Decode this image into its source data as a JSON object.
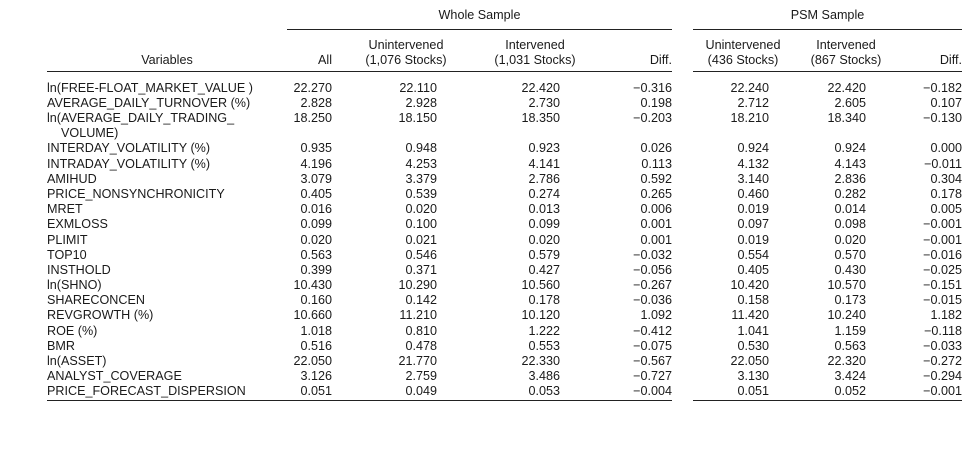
{
  "groups": {
    "whole": "Whole Sample",
    "psm": "PSM Sample"
  },
  "headers": {
    "variables": "Variables",
    "all": "All",
    "unint_whole": [
      "Unintervened",
      "(1,076 Stocks)"
    ],
    "int_whole": [
      "Intervened",
      "(1,031 Stocks)"
    ],
    "diff_whole": "Diff.",
    "unint_psm": [
      "Unintervened",
      "(436 Stocks)"
    ],
    "int_psm": [
      "Intervened",
      "(867 Stocks)"
    ],
    "diff_psm": "Diff."
  },
  "rows": [
    {
      "var": [
        "ln(FREE-FLOAT_MARKET_VALUE )"
      ],
      "v": [
        "22.270",
        "22.110",
        "22.420",
        "−0.316",
        "22.240",
        "22.420",
        "−0.182"
      ]
    },
    {
      "var": [
        "AVERAGE_DAILY_TURNOVER (%)"
      ],
      "v": [
        "2.828",
        "2.928",
        "2.730",
        "0.198",
        "2.712",
        "2.605",
        "0.107"
      ]
    },
    {
      "var": [
        "ln(AVERAGE_DAILY_TRADING_",
        "VOLUME)"
      ],
      "v": [
        "18.250",
        "18.150",
        "18.350",
        "−0.203",
        "18.210",
        "18.340",
        "−0.130"
      ]
    },
    {
      "var": [
        "INTERDAY_VOLATILITY (%)"
      ],
      "v": [
        "0.935",
        "0.948",
        "0.923",
        "0.026",
        "0.924",
        "0.924",
        "0.000"
      ]
    },
    {
      "var": [
        "INTRADAY_VOLATILITY (%)"
      ],
      "v": [
        "4.196",
        "4.253",
        "4.141",
        "0.113",
        "4.132",
        "4.143",
        "−0.011"
      ]
    },
    {
      "var": [
        "AMIHUD"
      ],
      "v": [
        "3.079",
        "3.379",
        "2.786",
        "0.592",
        "3.140",
        "2.836",
        "0.304"
      ]
    },
    {
      "var": [
        "PRICE_NONSYNCHRONICITY"
      ],
      "v": [
        "0.405",
        "0.539",
        "0.274",
        "0.265",
        "0.460",
        "0.282",
        "0.178"
      ]
    },
    {
      "var": [
        "MRET"
      ],
      "v": [
        "0.016",
        "0.020",
        "0.013",
        "0.006",
        "0.019",
        "0.014",
        "0.005"
      ]
    },
    {
      "var": [
        "EXMLOSS"
      ],
      "v": [
        "0.099",
        "0.100",
        "0.099",
        "0.001",
        "0.097",
        "0.098",
        "−0.001"
      ]
    },
    {
      "var": [
        "PLIMIT"
      ],
      "v": [
        "0.020",
        "0.021",
        "0.020",
        "0.001",
        "0.019",
        "0.020",
        "−0.001"
      ]
    },
    {
      "var": [
        "TOP10"
      ],
      "v": [
        "0.563",
        "0.546",
        "0.579",
        "−0.032",
        "0.554",
        "0.570",
        "−0.016"
      ]
    },
    {
      "var": [
        "INSTHOLD"
      ],
      "v": [
        "0.399",
        "0.371",
        "0.427",
        "−0.056",
        "0.405",
        "0.430",
        "−0.025"
      ]
    },
    {
      "var": [
        "ln(SHNO)"
      ],
      "v": [
        "10.430",
        "10.290",
        "10.560",
        "−0.267",
        "10.420",
        "10.570",
        "−0.151"
      ]
    },
    {
      "var": [
        "SHARECONCEN"
      ],
      "v": [
        "0.160",
        "0.142",
        "0.178",
        "−0.036",
        "0.158",
        "0.173",
        "−0.015"
      ]
    },
    {
      "var": [
        "REVGROWTH (%)"
      ],
      "v": [
        "10.660",
        "11.210",
        "10.120",
        "1.092",
        "11.420",
        "10.240",
        "1.182"
      ]
    },
    {
      "var": [
        "ROE (%)"
      ],
      "v": [
        "1.018",
        "0.810",
        "1.222",
        "−0.412",
        "1.041",
        "1.159",
        "−0.118"
      ]
    },
    {
      "var": [
        "BMR"
      ],
      "v": [
        "0.516",
        "0.478",
        "0.553",
        "−0.075",
        "0.530",
        "0.563",
        "−0.033"
      ]
    },
    {
      "var": [
        "ln(ASSET)"
      ],
      "v": [
        "22.050",
        "21.770",
        "22.330",
        "−0.567",
        "22.050",
        "22.320",
        "−0.272"
      ]
    },
    {
      "var": [
        "ANALYST_COVERAGE"
      ],
      "v": [
        "3.126",
        "2.759",
        "3.486",
        "−0.727",
        "3.130",
        "3.424",
        "−0.294"
      ]
    },
    {
      "var": [
        "PRICE_FORECAST_DISPERSION"
      ],
      "v": [
        "0.051",
        "0.049",
        "0.053",
        "−0.004",
        "0.051",
        "0.052",
        "−0.001"
      ]
    }
  ]
}
